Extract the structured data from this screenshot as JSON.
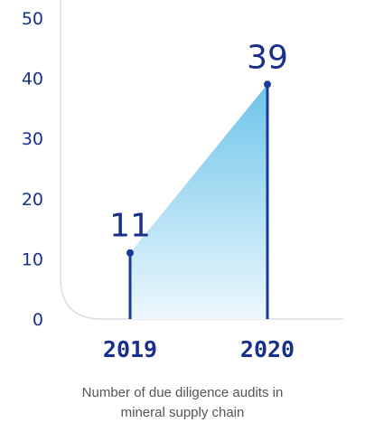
{
  "chart_data": {
    "type": "area",
    "categories": [
      "2019",
      "2020"
    ],
    "values": [
      11,
      39
    ],
    "data_labels": [
      "11",
      "39"
    ],
    "caption_lines": [
      "Number of due diligence audits in",
      "mineral supply chain"
    ],
    "ylim": [
      0,
      50
    ],
    "yticks": [
      "0",
      "10",
      "20",
      "30",
      "40",
      "50"
    ],
    "grid": false,
    "colors": {
      "axis_text": "#1a2f8a",
      "stem": "#1a3a9a",
      "fill_top": "#6cc4ea",
      "fill_bottom": "#eef8fd",
      "frame": "#dcdde2",
      "caption": "#555555"
    }
  }
}
